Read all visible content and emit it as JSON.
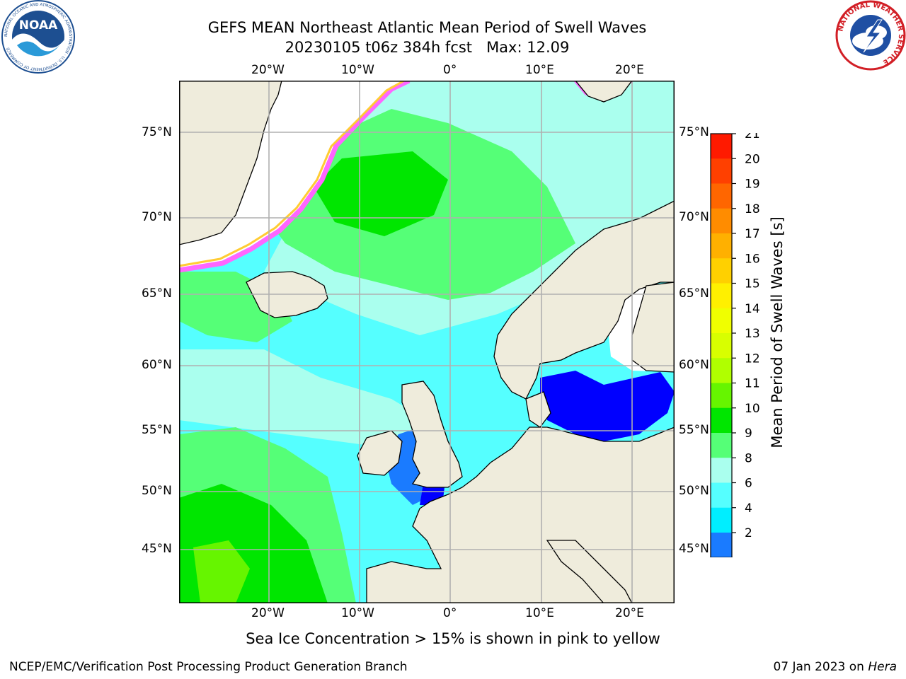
{
  "title": {
    "line1": "GEFS MEAN Northeast Atlantic Mean Period of Swell Waves",
    "line2": "20230105 t06z 384h fcst   Max: 12.09"
  },
  "map": {
    "lon_labels": [
      "20°W",
      "10°W",
      "0°",
      "10°E",
      "20°E"
    ],
    "lat_labels": [
      "75°N",
      "70°N",
      "65°N",
      "60°N",
      "55°N",
      "50°N",
      "45°N"
    ],
    "lon_range_deg": [
      -30,
      25
    ],
    "lat_range_deg": [
      41,
      78
    ],
    "colors": {
      "land": "#efecdc",
      "ocean_base": "#55ffff",
      "no_data": "#ffffff",
      "grid": "#b0b0b0"
    }
  },
  "colorbar": {
    "title": "Mean Period of Swell Waves [s]",
    "ticks": [
      "21",
      "20",
      "19",
      "18",
      "17",
      "16",
      "15",
      "14",
      "13",
      "12",
      "11",
      "10",
      "9",
      "8",
      "6",
      "4",
      "2"
    ],
    "colors_top_to_bottom": [
      "#ff1a00",
      "#ff4000",
      "#ff6600",
      "#ff8c00",
      "#ffb000",
      "#ffd000",
      "#fff000",
      "#f0ff00",
      "#d8ff00",
      "#b0ff00",
      "#66f500",
      "#00e600",
      "#55ff77",
      "#aaffee",
      "#55ffff",
      "#00eeff",
      "#1a7bff"
    ],
    "extend_color": "#0000ff"
  },
  "ice_note": "Sea Ice Concentration > 15% is shown in pink to yellow",
  "footer": {
    "left": "NCEP/EMC/Verification Post Processing Product Generation Branch",
    "right_date": "07 Jan 2023 on ",
    "right_host": "Hera"
  },
  "logos": {
    "left_text": "NOAA",
    "left_ring": "NATIONAL OCEANIC AND ATMOSPHERIC ADMINISTRATION · U.S. DEPARTMENT OF COMMERCE",
    "right_ring": "NATIONAL WEATHER SERVICE"
  }
}
